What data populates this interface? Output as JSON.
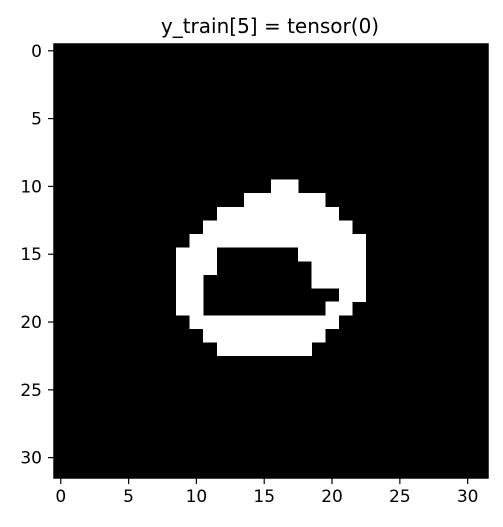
{
  "chart_data": {
    "type": "heatmap",
    "title": "y_train[5] = tensor(0)",
    "xlabel": "",
    "ylabel": "",
    "grid": false,
    "colormap": "gray",
    "colors": {
      "background": "#000000",
      "foreground": "#ffffff"
    },
    "shape": [
      32,
      32
    ],
    "xlim": [
      -0.5,
      31.5
    ],
    "ylim": [
      31.5,
      -0.5
    ],
    "x_ticks": [
      0,
      5,
      10,
      15,
      20,
      25,
      30
    ],
    "y_ticks": [
      0,
      5,
      10,
      15,
      20,
      25,
      30
    ],
    "x_tick_labels": [
      "0",
      "5",
      "10",
      "15",
      "20",
      "25",
      "30"
    ],
    "y_tick_labels": [
      "0",
      "5",
      "10",
      "15",
      "20",
      "25",
      "30"
    ],
    "value_range": [
      0,
      1
    ],
    "rows": [
      "00000000000000000000000000000000",
      "00000000000000000000000000000000",
      "00000000000000000000000000000000",
      "00000000000000000000000000000000",
      "00000000000000000000000000000000",
      "00000000000000000000000000000000",
      "00000000000000000000000000000000",
      "00000000000000000000000000000000",
      "00000000000000000000000000000000",
      "00000000000000000000000000000000",
      "00000000000000001100000000000000",
      "00000000000000111111000000000000",
      "00000000000011111111100000000000",
      "00000000000111111111110000000000",
      "00000000001111111111111000000000",
      "00000000011100000011111000000000",
      "00000000011100000001111000000000",
      "00000000011000000001111000000000",
      "00000000011000000000011000000000",
      "00000000011000000000110000000000",
      "00000000001111111111100000000000",
      "00000000000111111111000000000000",
      "00000000000011111110000000000000",
      "00000000000000000000000000000000",
      "00000000000000000000000000000000",
      "00000000000000000000000000000000",
      "00000000000000000000000000000000",
      "00000000000000000000000000000000",
      "00000000000000000000000000000000",
      "00000000000000000000000000000000",
      "00000000000000000000000000000000",
      "00000000000000000000000000000000"
    ]
  }
}
